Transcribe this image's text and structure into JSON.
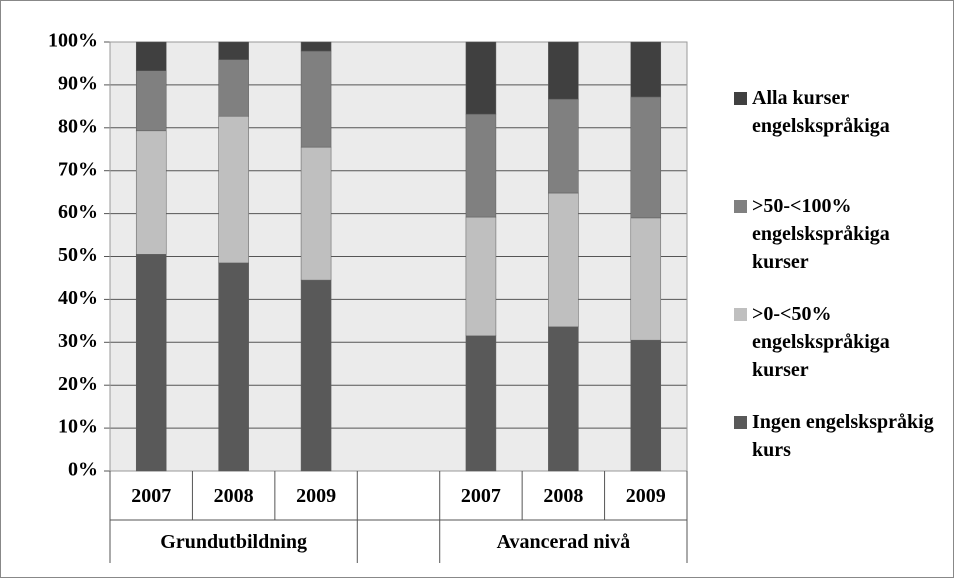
{
  "chart_data": {
    "type": "bar",
    "stacked": true,
    "categories": [
      "2007",
      "2008",
      "2009",
      null,
      "2007",
      "2008",
      "2009"
    ],
    "groups": [
      "Grundutbildning",
      "Avancerad nivå"
    ],
    "series": [
      {
        "name": "Ingen engelskspråkig kurs",
        "color": "#595959",
        "values": [
          50.5,
          48.5,
          44.5,
          null,
          31.5,
          33.6,
          30.5
        ]
      },
      {
        "name": ">0-<50% engelskspråkiga kurser",
        "color": "#bfbfbf",
        "values": [
          28.8,
          34.2,
          31,
          null,
          27.7,
          31.2,
          28.5
        ]
      },
      {
        "name": ">50-<100% engelskspråkiga kurser",
        "color": "#808080",
        "values": [
          14,
          13.2,
          22.4,
          null,
          24,
          21.9,
          28.2
        ]
      },
      {
        "name": "Alla kurser engelskspråkiga",
        "color": "#404040",
        "values": [
          6.7,
          4.1,
          2.1,
          null,
          16.8,
          13.3,
          12.8
        ]
      }
    ],
    "ylim": [
      0,
      100
    ],
    "yticks": [
      {
        "value": 0,
        "label": "0%"
      },
      {
        "value": 10,
        "label": "10%"
      },
      {
        "value": 20,
        "label": "20%"
      },
      {
        "value": 30,
        "label": "30%"
      },
      {
        "value": 40,
        "label": "40%"
      },
      {
        "value": 50,
        "label": "50%"
      },
      {
        "value": 60,
        "label": "60%"
      },
      {
        "value": 70,
        "label": "70%"
      },
      {
        "value": 80,
        "label": "80%"
      },
      {
        "value": 90,
        "label": "90%"
      },
      {
        "value": 100,
        "label": "100%"
      }
    ],
    "grid": true,
    "legend": "right"
  }
}
